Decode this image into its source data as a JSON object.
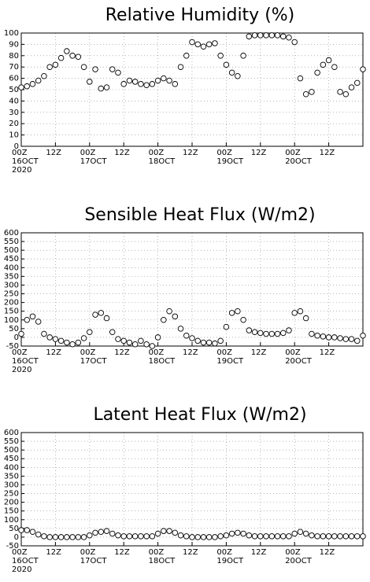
{
  "chart_data": [
    {
      "type": "line",
      "title": "Relative Humidity (%)",
      "color": "#000000",
      "marker": "circle",
      "grid": true,
      "x": [
        0,
        2,
        4,
        6,
        8,
        10,
        12,
        14,
        16,
        18,
        20,
        22,
        24,
        26,
        28,
        30,
        32,
        34,
        36,
        38,
        40,
        42,
        44,
        46,
        48,
        50,
        52,
        54,
        56,
        58,
        60,
        62,
        64,
        66,
        68,
        70,
        72,
        74,
        76,
        78,
        80,
        82,
        84,
        86,
        88,
        90,
        92,
        94,
        96,
        98,
        100,
        102,
        104,
        106,
        108,
        110,
        112,
        114,
        116,
        118,
        120
      ],
      "values": [
        52,
        53,
        55,
        58,
        62,
        70,
        72,
        78,
        84,
        80,
        79,
        70,
        57,
        68,
        51,
        52,
        68,
        65,
        55,
        58,
        57,
        55,
        54,
        55,
        58,
        60,
        58,
        55,
        70,
        80,
        92,
        90,
        88,
        90,
        91,
        80,
        72,
        65,
        62,
        80,
        97,
        98,
        98,
        98,
        98,
        98,
        97,
        96,
        92,
        60,
        46,
        48,
        65,
        72,
        76,
        70,
        48,
        46,
        52,
        56,
        68
      ],
      "xlim": [
        0,
        120
      ],
      "xticks": [
        {
          "value": 0,
          "label": "00Z\n16OCT\n2020"
        },
        {
          "value": 12,
          "label": "12Z"
        },
        {
          "value": 24,
          "label": "00Z\n17OCT"
        },
        {
          "value": 36,
          "label": "12Z"
        },
        {
          "value": 48,
          "label": "00Z\n18OCT"
        },
        {
          "value": 60,
          "label": "12Z"
        },
        {
          "value": 72,
          "label": "00Z\n19OCT"
        },
        {
          "value": 84,
          "label": "12Z"
        },
        {
          "value": 96,
          "label": "00Z\n20OCT"
        },
        {
          "value": 108,
          "label": "12Z"
        }
      ],
      "ylim": [
        0,
        100
      ],
      "yticks": [
        0,
        10,
        20,
        30,
        40,
        50,
        60,
        70,
        80,
        90,
        100
      ]
    },
    {
      "type": "line",
      "title": "Sensible Heat Flux (W/m2)",
      "color": "#000000",
      "marker": "circle",
      "grid": true,
      "x": [
        0,
        2,
        4,
        6,
        8,
        10,
        12,
        14,
        16,
        18,
        20,
        22,
        24,
        26,
        28,
        30,
        32,
        34,
        36,
        38,
        40,
        42,
        44,
        46,
        48,
        50,
        52,
        54,
        56,
        58,
        60,
        62,
        64,
        66,
        68,
        70,
        72,
        74,
        76,
        78,
        80,
        82,
        84,
        86,
        88,
        90,
        92,
        94,
        96,
        98,
        100,
        102,
        104,
        106,
        108,
        110,
        112,
        114,
        116,
        118,
        120
      ],
      "values": [
        20,
        100,
        120,
        90,
        20,
        0,
        -10,
        -20,
        -30,
        -40,
        -30,
        -5,
        30,
        130,
        140,
        110,
        30,
        -10,
        -20,
        -30,
        -40,
        -20,
        -40,
        -50,
        0,
        100,
        150,
        120,
        50,
        10,
        -5,
        -20,
        -30,
        -30,
        -35,
        -20,
        60,
        140,
        150,
        100,
        40,
        30,
        25,
        20,
        20,
        20,
        25,
        40,
        140,
        150,
        110,
        20,
        10,
        5,
        0,
        0,
        -5,
        -10,
        -10,
        -20,
        10
      ],
      "xlim": [
        0,
        120
      ],
      "xticks": [
        {
          "value": 0,
          "label": "00Z\n16OCT\n2020"
        },
        {
          "value": 12,
          "label": "12Z"
        },
        {
          "value": 24,
          "label": "00Z\n17OCT"
        },
        {
          "value": 36,
          "label": "12Z"
        },
        {
          "value": 48,
          "label": "00Z\n18OCT"
        },
        {
          "value": 60,
          "label": "12Z"
        },
        {
          "value": 72,
          "label": "00Z\n19OCT"
        },
        {
          "value": 84,
          "label": "12Z"
        },
        {
          "value": 96,
          "label": "00Z\n20OCT"
        },
        {
          "value": 108,
          "label": "12Z"
        }
      ],
      "ylim": [
        -50,
        600
      ],
      "yticks": [
        -50,
        0,
        50,
        100,
        150,
        200,
        250,
        300,
        350,
        400,
        450,
        500,
        550,
        600
      ]
    },
    {
      "type": "line",
      "title": "Latent Heat Flux (W/m2)",
      "color": "#000000",
      "marker": "circle",
      "grid": true,
      "x": [
        0,
        2,
        4,
        6,
        8,
        10,
        12,
        14,
        16,
        18,
        20,
        22,
        24,
        26,
        28,
        30,
        32,
        34,
        36,
        38,
        40,
        42,
        44,
        46,
        48,
        50,
        52,
        54,
        56,
        58,
        60,
        62,
        64,
        66,
        68,
        70,
        72,
        74,
        76,
        78,
        80,
        82,
        84,
        86,
        88,
        90,
        92,
        94,
        96,
        98,
        100,
        102,
        104,
        106,
        108,
        110,
        112,
        114,
        116,
        118,
        120
      ],
      "values": [
        40,
        40,
        30,
        15,
        5,
        0,
        0,
        0,
        0,
        0,
        0,
        0,
        10,
        25,
        30,
        35,
        20,
        10,
        5,
        5,
        5,
        5,
        5,
        5,
        20,
        35,
        35,
        25,
        10,
        5,
        0,
        0,
        0,
        0,
        0,
        5,
        10,
        20,
        25,
        20,
        10,
        5,
        5,
        5,
        5,
        5,
        5,
        5,
        20,
        30,
        20,
        10,
        5,
        5,
        5,
        5,
        5,
        5,
        5,
        5,
        5
      ],
      "xlim": [
        0,
        120
      ],
      "xticks": [
        {
          "value": 0,
          "label": "00Z\n16OCT\n2020"
        },
        {
          "value": 12,
          "label": "12Z"
        },
        {
          "value": 24,
          "label": "00Z\n17OCT"
        },
        {
          "value": 36,
          "label": "12Z"
        },
        {
          "value": 48,
          "label": "00Z\n18OCT"
        },
        {
          "value": 60,
          "label": "12Z"
        },
        {
          "value": 72,
          "label": "00Z\n19OCT"
        },
        {
          "value": 84,
          "label": "12Z"
        },
        {
          "value": 96,
          "label": "00Z\n20OCT"
        },
        {
          "value": 108,
          "label": "12Z"
        }
      ],
      "ylim": [
        -50,
        600
      ],
      "yticks": [
        -50,
        0,
        50,
        100,
        150,
        200,
        250,
        300,
        350,
        400,
        450,
        500,
        550,
        600
      ]
    }
  ]
}
